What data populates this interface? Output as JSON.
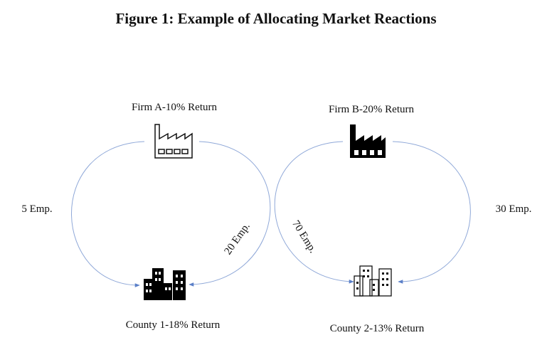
{
  "title": "Figure 1: Example of Allocating Market Reactions",
  "nodes": [
    {
      "label": "Firm A-10% Return"
    },
    {
      "label": "Firm B-20% Return"
    },
    {
      "label": "County 1-18% Return"
    },
    {
      "label": "County 2-13% Return"
    }
  ],
  "edges": [
    {
      "label": "5 Emp."
    },
    {
      "label": "20 Emp."
    },
    {
      "label": "70 Emp."
    },
    {
      "label": "30 Emp."
    }
  ]
}
